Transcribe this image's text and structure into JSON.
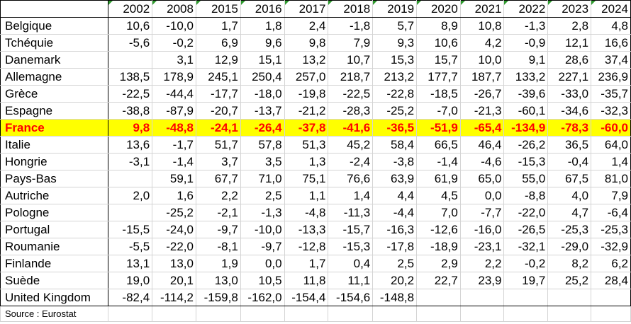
{
  "table": {
    "years": [
      "2002",
      "2008",
      "2015",
      "2016",
      "2017",
      "2018",
      "2019",
      "2020",
      "2021",
      "2022",
      "2023",
      "2024"
    ],
    "rows": [
      {
        "country": "Belgique",
        "values": [
          "10,6",
          "-10,0",
          "1,7",
          "1,8",
          "2,4",
          "-1,8",
          "5,7",
          "8,9",
          "10,8",
          "-1,3",
          "2,8",
          "4,8"
        ]
      },
      {
        "country": "Tchéquie",
        "values": [
          "-5,6",
          "-0,2",
          "6,9",
          "9,6",
          "9,8",
          "7,9",
          "9,3",
          "10,6",
          "4,2",
          "-0,9",
          "12,1",
          "16,6"
        ]
      },
      {
        "country": "Danemark",
        "values": [
          "",
          "3,1",
          "12,9",
          "15,1",
          "13,2",
          "10,7",
          "15,3",
          "15,7",
          "10,0",
          "9,1",
          "28,6",
          "37,4"
        ]
      },
      {
        "country": "Allemagne",
        "values": [
          "138,5",
          "178,9",
          "245,1",
          "250,4",
          "257,0",
          "218,7",
          "213,2",
          "177,7",
          "187,7",
          "133,2",
          "227,1",
          "236,9"
        ]
      },
      {
        "country": "Grèce",
        "values": [
          "-22,5",
          "-44,4",
          "-17,7",
          "-18,0",
          "-19,8",
          "-22,5",
          "-22,8",
          "-18,5",
          "-26,7",
          "-39,6",
          "-33,0",
          "-35,7"
        ]
      },
      {
        "country": "Espagne",
        "values": [
          "-38,8",
          "-87,9",
          "-20,7",
          "-13,7",
          "-21,2",
          "-28,3",
          "-25,2",
          "-7,0",
          "-21,3",
          "-60,1",
          "-34,6",
          "-32,3"
        ]
      },
      {
        "country": "France",
        "highlight": true,
        "values": [
          "9,8",
          "-48,8",
          "-24,1",
          "-26,4",
          "-37,8",
          "-41,6",
          "-36,5",
          "-51,9",
          "-65,4",
          "-134,9",
          "-78,3",
          "-60,0"
        ]
      },
      {
        "country": "Italie",
        "values": [
          "13,6",
          "-1,7",
          "51,7",
          "57,8",
          "51,3",
          "45,2",
          "58,4",
          "66,5",
          "46,4",
          "-26,2",
          "36,5",
          "64,0"
        ]
      },
      {
        "country": "Hongrie",
        "values": [
          "-3,1",
          "-1,4",
          "3,7",
          "3,5",
          "1,3",
          "-2,4",
          "-3,8",
          "-1,4",
          "-4,6",
          "-15,3",
          "-0,4",
          "1,4"
        ]
      },
      {
        "country": "Pays-Bas",
        "values": [
          "",
          "59,1",
          "67,7",
          "71,0",
          "75,1",
          "76,6",
          "63,9",
          "61,9",
          "65,0",
          "55,0",
          "67,5",
          "81,0"
        ]
      },
      {
        "country": "Autriche",
        "values": [
          "2,0",
          "1,6",
          "2,2",
          "2,5",
          "1,1",
          "1,4",
          "4,4",
          "4,5",
          "0,0",
          "-8,8",
          "4,0",
          "7,9"
        ]
      },
      {
        "country": "Pologne",
        "values": [
          "",
          "-25,2",
          "-2,1",
          "-1,3",
          "-4,8",
          "-11,3",
          "-4,4",
          "7,0",
          "-7,7",
          "-22,0",
          "4,7",
          "-6,4"
        ]
      },
      {
        "country": "Portugal",
        "values": [
          "-15,5",
          "-24,0",
          "-9,7",
          "-10,0",
          "-13,3",
          "-15,7",
          "-16,3",
          "-12,6",
          "-16,0",
          "-26,5",
          "-25,3",
          "-25,3"
        ]
      },
      {
        "country": "Roumanie",
        "values": [
          "-5,5",
          "-22,0",
          "-8,1",
          "-9,7",
          "-12,8",
          "-15,3",
          "-17,8",
          "-18,9",
          "-23,1",
          "-32,1",
          "-29,0",
          "-32,9"
        ]
      },
      {
        "country": "Finlande",
        "values": [
          "13,1",
          "13,0",
          "1,9",
          "0,0",
          "1,7",
          "0,4",
          "2,5",
          "2,9",
          "2,2",
          "-0,2",
          "8,2",
          "6,2"
        ]
      },
      {
        "country": "Suède",
        "values": [
          "19,0",
          "20,1",
          "13,0",
          "10,5",
          "11,8",
          "11,1",
          "20,2",
          "22,7",
          "23,9",
          "19,7",
          "25,2",
          "28,4"
        ]
      },
      {
        "country": "United Kingdom",
        "values": [
          "-82,4",
          "-114,2",
          "-159,8",
          "-162,0",
          "-154,4",
          "-154,6",
          "-148,8",
          "",
          "",
          "",
          "",
          ""
        ]
      }
    ],
    "source": "Source : Eurostat"
  },
  "colors": {
    "highlight_bg": "#ffff00",
    "highlight_text": "#ff0000",
    "header_marker": "#2e9a2e",
    "gridline": "#d4d4d4"
  }
}
